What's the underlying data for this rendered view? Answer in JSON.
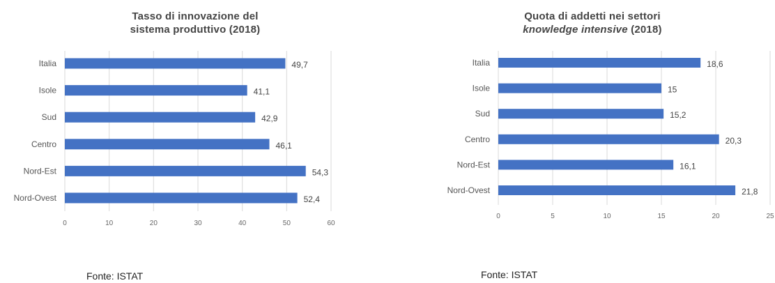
{
  "colors": {
    "bar": "#4472c4",
    "grid": "#d9d9d9",
    "text": "#555555"
  },
  "charts": {
    "left": {
      "title_line1": "Tasso di innovazione del",
      "title_line2": "sistema produttivo (2018)",
      "source": "Fonte: ISTAT"
    },
    "right": {
      "title_line1": "Quota di addetti nei settori",
      "title_line2_italic": "knowledge intensive",
      "title_line2_rest": " (2018)",
      "source": "Fonte: ISTAT"
    }
  },
  "chart_data": [
    {
      "type": "bar",
      "orientation": "horizontal",
      "title": "Tasso di innovazione del sistema produttivo (2018)",
      "categories": [
        "Italia",
        "Isole",
        "Sud",
        "Centro",
        "Nord-Est",
        "Nord-Ovest"
      ],
      "values": [
        49.7,
        41.1,
        42.9,
        46.1,
        54.3,
        52.4
      ],
      "value_labels": [
        "49,7",
        "41,1",
        "42,9",
        "46,1",
        "54,3",
        "52,4"
      ],
      "xlim": [
        0,
        60
      ],
      "xticks": [
        0,
        10,
        20,
        30,
        40,
        50,
        60
      ],
      "grid": true
    },
    {
      "type": "bar",
      "orientation": "horizontal",
      "title": "Quota di addetti nei settori knowledge intensive (2018)",
      "categories": [
        "Italia",
        "Isole",
        "Sud",
        "Centro",
        "Nord-Est",
        "Nord-Ovest"
      ],
      "values": [
        18.6,
        15,
        15.2,
        20.3,
        16.1,
        21.8
      ],
      "value_labels": [
        "18,6",
        "15",
        "15,2",
        "20,3",
        "16,1",
        "21,8"
      ],
      "xlim": [
        0,
        25
      ],
      "xticks": [
        0,
        5,
        10,
        15,
        20,
        25
      ],
      "grid": true
    }
  ]
}
